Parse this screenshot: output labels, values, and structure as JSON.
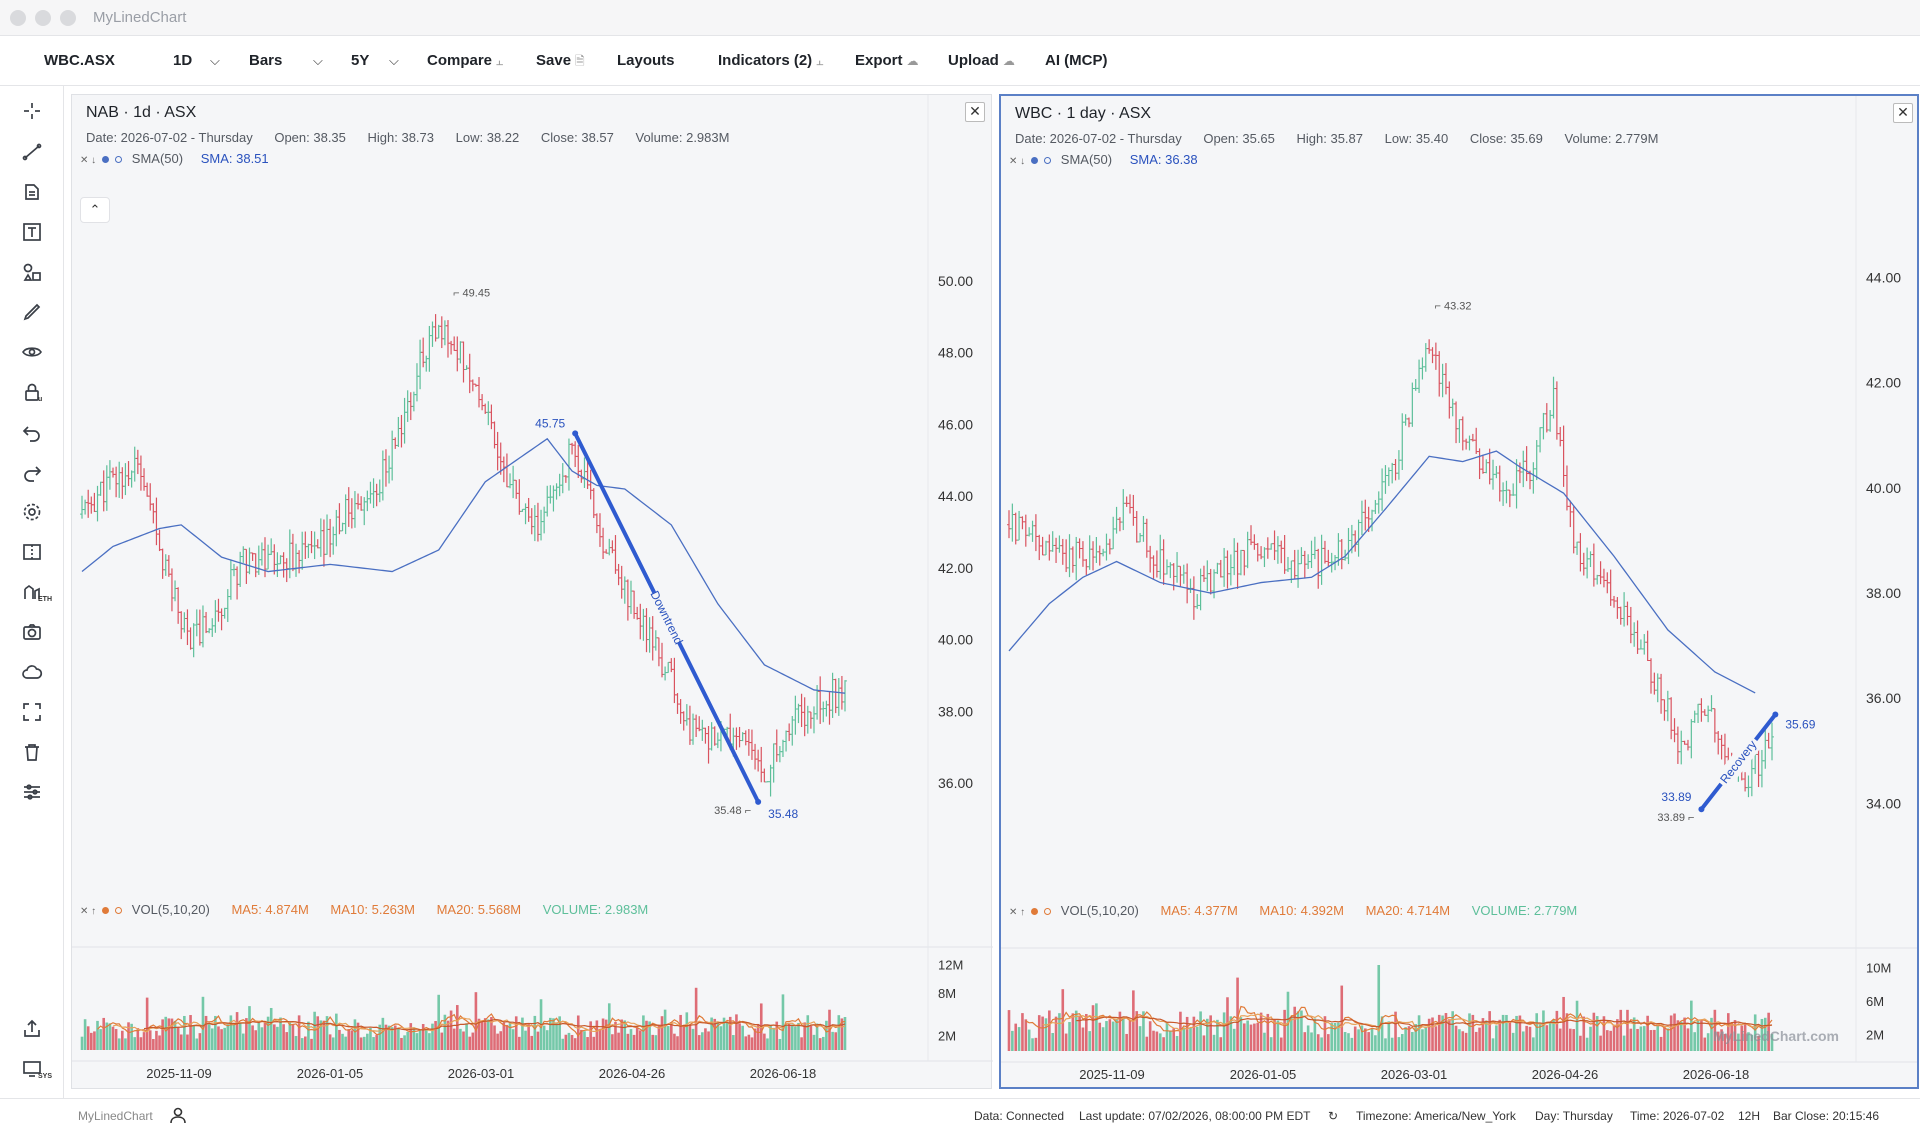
{
  "app": {
    "title": "MyLinedChart"
  },
  "toolbar": {
    "symbol": "WBC.ASX",
    "interval": "1D",
    "chart_type": "Bars",
    "range": "5Y",
    "compare": "Compare",
    "save": "Save",
    "layouts": "Layouts",
    "indicators": "Indicators (2)",
    "export": "Export",
    "upload": "Upload",
    "ai": "AI (MCP)"
  },
  "left_tools": [
    "crosshair-icon",
    "trend-line-icon",
    "fib-icon",
    "text-icon",
    "shapes-icon",
    "brush-icon",
    "eye-icon",
    "lock-icon",
    "undo-icon",
    "redo-icon",
    "settings-icon",
    "compare-icon",
    "eth-icon",
    "camera-icon",
    "cloud-icon",
    "fullscreen-icon",
    "trash-icon",
    "sliders-icon",
    "share-icon",
    "sys-icon"
  ],
  "left_tool_labels": {
    "lock_badge": "u",
    "eth_badge": "ETH",
    "sys_badge": "SYS"
  },
  "colors": {
    "up": "#5dbf9a",
    "down": "#d9535f",
    "sma": "#4a6fc2",
    "accent": "#2a52be",
    "ma": "#e07b39"
  },
  "panels": [
    {
      "title": "NAB · 1d · ASX",
      "date": "Date: 2026-07-02 - Thursday",
      "open": "Open: 38.35",
      "high": "High: 38.73",
      "low": "Low: 38.22",
      "close": "Close: 38.57",
      "volume": "Volume: 2.983M",
      "sma_label": "SMA(50)",
      "sma_value": "SMA: 38.51",
      "vol_label": "VOL(5,10,20)",
      "ma5": "MA5: 4.874M",
      "ma10": "MA10: 5.263M",
      "ma20": "MA20: 5.568M",
      "vol_value": "VOLUME: 2.983M",
      "annotation": "Downtrend",
      "start_label": "45.75",
      "end_label": "35.48",
      "high_label": "49.45",
      "low_label": "35.48",
      "watermark": ""
    },
    {
      "title": "WBC · 1 day · ASX",
      "date": "Date: 2026-07-02 - Thursday",
      "open": "Open: 35.65",
      "high": "High: 35.87",
      "low": "Low: 35.40",
      "close": "Close: 35.69",
      "volume": "Volume: 2.779M",
      "sma_label": "SMA(50)",
      "sma_value": "SMA: 36.38",
      "vol_label": "VOL(5,10,20)",
      "ma5": "MA5: 4.377M",
      "ma10": "MA10: 4.392M",
      "ma20": "MA20: 4.714M",
      "vol_value": "VOLUME: 2.779M",
      "annotation": "Recovery",
      "start_label": "33.89",
      "end_label": "35.69",
      "high_label": "43.32",
      "low_label": "33.89",
      "watermark": "MyLinedChart.com"
    }
  ],
  "chart_data": [
    {
      "type": "ohlc",
      "title": "NAB · 1d · ASX",
      "x_ticks": [
        "2025-11-09",
        "2026-01-05",
        "2026-03-01",
        "2026-04-26",
        "2026-06-18"
      ],
      "y_ticks": [
        "36.00",
        "38.00",
        "40.00",
        "42.00",
        "44.00",
        "46.00",
        "48.00",
        "50.00"
      ],
      "ylim": [
        34.0,
        51.0
      ],
      "vol_ticks": [
        "2M",
        "8M",
        "12M"
      ],
      "vol_max": 14,
      "anchors": [
        [
          0,
          43.5
        ],
        [
          8,
          44.3
        ],
        [
          18,
          44.8
        ],
        [
          25,
          42.5
        ],
        [
          34,
          40.1
        ],
        [
          42,
          40.5
        ],
        [
          52,
          42.3
        ],
        [
          65,
          42.3
        ],
        [
          75,
          42.4
        ],
        [
          85,
          43.5
        ],
        [
          95,
          44.2
        ],
        [
          105,
          46.4
        ],
        [
          112,
          48.5
        ],
        [
          120,
          48.4
        ],
        [
          130,
          46.5
        ],
        [
          138,
          44.3
        ],
        [
          145,
          42.9
        ],
        [
          152,
          44.0
        ],
        [
          158,
          45.4
        ],
        [
          166,
          43.3
        ],
        [
          172,
          42.0
        ],
        [
          180,
          40.5
        ],
        [
          188,
          39.2
        ],
        [
          196,
          37.5
        ],
        [
          204,
          37.1
        ],
        [
          212,
          37.3
        ],
        [
          220,
          36.2
        ],
        [
          228,
          37.6
        ],
        [
          236,
          38.3
        ],
        [
          246,
          38.6
        ]
      ],
      "sma": [
        [
          0,
          41.9
        ],
        [
          10,
          42.6
        ],
        [
          25,
          43.1
        ],
        [
          32,
          43.2
        ],
        [
          45,
          42.3
        ],
        [
          60,
          41.9
        ],
        [
          80,
          42.1
        ],
        [
          100,
          41.9
        ],
        [
          115,
          42.5
        ],
        [
          130,
          44.4
        ],
        [
          150,
          45.6
        ],
        [
          158,
          44.7
        ],
        [
          166,
          44.3
        ],
        [
          175,
          44.2
        ],
        [
          190,
          43.2
        ],
        [
          205,
          41.0
        ],
        [
          220,
          39.3
        ],
        [
          236,
          38.6
        ],
        [
          246,
          38.51
        ]
      ],
      "trend": {
        "name": "Downtrend",
        "from": [
          159,
          45.75
        ],
        "to": [
          218,
          35.48
        ]
      },
      "high": {
        "value": 49.45,
        "x": 119
      },
      "low": {
        "value": 35.48,
        "x": 218
      },
      "seed": 11,
      "n": 247
    },
    {
      "type": "ohlc",
      "title": "WBC · 1 day · ASX",
      "x_ticks": [
        "2025-11-09",
        "2026-01-05",
        "2026-03-01",
        "2026-04-26",
        "2026-06-18"
      ],
      "y_ticks": [
        "34.00",
        "36.00",
        "38.00",
        "40.00",
        "42.00",
        "44.00"
      ],
      "ylim": [
        33.0,
        44.6
      ],
      "vol_ticks": [
        "2M",
        "6M",
        "10M"
      ],
      "vol_max": 12,
      "anchors": [
        [
          0,
          39.3
        ],
        [
          8,
          39.0
        ],
        [
          15,
          38.7
        ],
        [
          25,
          38.7
        ],
        [
          35,
          39.5
        ],
        [
          45,
          38.6
        ],
        [
          55,
          38.0
        ],
        [
          65,
          38.5
        ],
        [
          75,
          38.9
        ],
        [
          85,
          38.5
        ],
        [
          95,
          38.6
        ],
        [
          105,
          39.3
        ],
        [
          115,
          40.5
        ],
        [
          125,
          42.8
        ],
        [
          135,
          41.0
        ],
        [
          145,
          40.0
        ],
        [
          155,
          40.3
        ],
        [
          162,
          41.8
        ],
        [
          168,
          38.9
        ],
        [
          176,
          38.3
        ],
        [
          184,
          37.6
        ],
        [
          192,
          36.3
        ],
        [
          200,
          35.1
        ],
        [
          207,
          35.8
        ],
        [
          214,
          34.8
        ],
        [
          220,
          34.5
        ],
        [
          228,
          35.2
        ],
        [
          236,
          35.4
        ],
        [
          244,
          35.6
        ]
      ],
      "sma": [
        [
          0,
          36.9
        ],
        [
          12,
          37.8
        ],
        [
          22,
          38.3
        ],
        [
          32,
          38.6
        ],
        [
          45,
          38.2
        ],
        [
          60,
          38.0
        ],
        [
          75,
          38.2
        ],
        [
          90,
          38.3
        ],
        [
          100,
          38.7
        ],
        [
          112,
          39.6
        ],
        [
          125,
          40.6
        ],
        [
          135,
          40.5
        ],
        [
          145,
          40.7
        ],
        [
          152,
          40.4
        ],
        [
          165,
          39.9
        ],
        [
          180,
          38.7
        ],
        [
          196,
          37.3
        ],
        [
          210,
          36.5
        ],
        [
          222,
          36.1
        ]
      ],
      "trend": {
        "name": "Recovery",
        "from": [
          206,
          33.89
        ],
        "to": [
          228,
          35.69
        ]
      },
      "high": {
        "value": 43.32,
        "x": 126
      },
      "low": {
        "value": 33.89,
        "x": 206
      },
      "seed": 29,
      "n": 228
    }
  ],
  "status": {
    "brand": "MyLinedChart",
    "data": "Data: Connected",
    "last_update": "Last update: 07/02/2026, 08:00:00 PM EDT",
    "timezone": "Timezone: America/New_York",
    "day": "Day: Thursday",
    "time": "Time: 2026-07-02",
    "hour_mode": "12H",
    "bar_close": "Bar Close: 20:15:46"
  }
}
